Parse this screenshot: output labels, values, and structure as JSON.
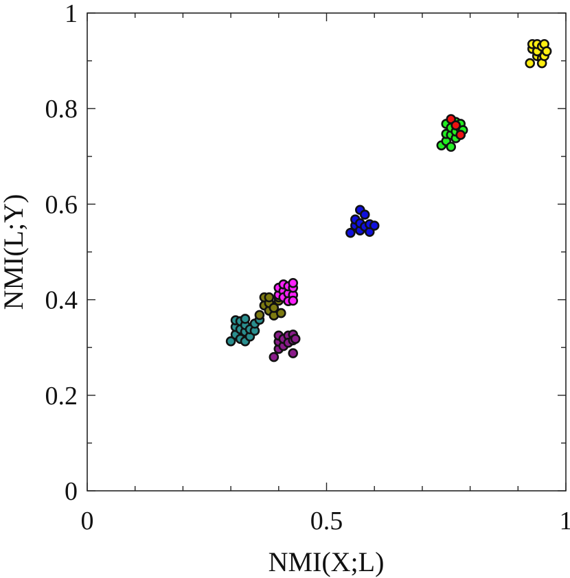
{
  "chart_data": {
    "type": "scatter",
    "xlabel": "NMI(X;L)",
    "ylabel": "NMI(L;Y)",
    "xlim": [
      0,
      1
    ],
    "ylim": [
      0,
      1
    ],
    "x_ticks": [
      {
        "value": 0,
        "label": "0"
      },
      {
        "value": 0.5,
        "label": "0.5"
      },
      {
        "value": 1,
        "label": "1"
      }
    ],
    "x_minor_ticks": [
      0.1,
      0.2,
      0.3,
      0.4,
      0.6,
      0.7,
      0.8,
      0.9
    ],
    "y_ticks": [
      {
        "value": 0,
        "label": "0"
      },
      {
        "value": 0.2,
        "label": "0.2"
      },
      {
        "value": 0.4,
        "label": "0.4"
      },
      {
        "value": 0.6,
        "label": "0.6"
      },
      {
        "value": 0.8,
        "label": "0.8"
      },
      {
        "value": 1,
        "label": "1"
      }
    ],
    "y_minor_ticks": [
      0.1,
      0.3,
      0.5,
      0.7,
      0.9
    ],
    "grid": false,
    "series": [
      {
        "color": "#2a8f8f",
        "points": [
          [
            0.3,
            0.313
          ],
          [
            0.31,
            0.327
          ],
          [
            0.31,
            0.343
          ],
          [
            0.31,
            0.357
          ],
          [
            0.32,
            0.318
          ],
          [
            0.32,
            0.338
          ],
          [
            0.32,
            0.355
          ],
          [
            0.33,
            0.313
          ],
          [
            0.33,
            0.333
          ],
          [
            0.33,
            0.347
          ],
          [
            0.33,
            0.36
          ],
          [
            0.34,
            0.323
          ],
          [
            0.34,
            0.338
          ],
          [
            0.35,
            0.335
          ],
          [
            0.35,
            0.35
          ],
          [
            0.36,
            0.358
          ]
        ]
      },
      {
        "color": "#7d7a10",
        "points": [
          [
            0.36,
            0.368
          ],
          [
            0.37,
            0.388
          ],
          [
            0.37,
            0.405
          ],
          [
            0.38,
            0.377
          ],
          [
            0.38,
            0.393
          ],
          [
            0.38,
            0.405
          ],
          [
            0.39,
            0.367
          ],
          [
            0.39,
            0.383
          ],
          [
            0.4,
            0.398
          ],
          [
            0.4,
            0.405
          ],
          [
            0.405,
            0.372
          ]
        ]
      },
      {
        "color": "#ff22ff",
        "points": [
          [
            0.4,
            0.41
          ],
          [
            0.4,
            0.425
          ],
          [
            0.41,
            0.418
          ],
          [
            0.41,
            0.432
          ],
          [
            0.41,
            0.405
          ],
          [
            0.42,
            0.413
          ],
          [
            0.42,
            0.428
          ],
          [
            0.42,
            0.397
          ],
          [
            0.43,
            0.41
          ],
          [
            0.43,
            0.425
          ],
          [
            0.43,
            0.435
          ],
          [
            0.43,
            0.398
          ]
        ]
      },
      {
        "color": "#8a1c8a",
        "points": [
          [
            0.39,
            0.28
          ],
          [
            0.4,
            0.297
          ],
          [
            0.4,
            0.312
          ],
          [
            0.4,
            0.325
          ],
          [
            0.41,
            0.303
          ],
          [
            0.41,
            0.318
          ],
          [
            0.42,
            0.325
          ],
          [
            0.42,
            0.31
          ],
          [
            0.43,
            0.327
          ],
          [
            0.43,
            0.315
          ],
          [
            0.43,
            0.288
          ],
          [
            0.435,
            0.318
          ]
        ]
      },
      {
        "color": "#1010dd",
        "points": [
          [
            0.55,
            0.54
          ],
          [
            0.56,
            0.555
          ],
          [
            0.56,
            0.568
          ],
          [
            0.57,
            0.545
          ],
          [
            0.57,
            0.56
          ],
          [
            0.57,
            0.588
          ],
          [
            0.58,
            0.578
          ],
          [
            0.58,
            0.553
          ],
          [
            0.59,
            0.542
          ],
          [
            0.59,
            0.558
          ],
          [
            0.6,
            0.555
          ]
        ]
      },
      {
        "color": "#22ee22",
        "points": [
          [
            0.74,
            0.723
          ],
          [
            0.75,
            0.732
          ],
          [
            0.75,
            0.747
          ],
          [
            0.75,
            0.768
          ],
          [
            0.76,
            0.745
          ],
          [
            0.76,
            0.76
          ],
          [
            0.77,
            0.738
          ],
          [
            0.77,
            0.752
          ],
          [
            0.77,
            0.772
          ],
          [
            0.78,
            0.758
          ],
          [
            0.78,
            0.768
          ],
          [
            0.78,
            0.745
          ],
          [
            0.785,
            0.755
          ],
          [
            0.76,
            0.72
          ]
        ]
      },
      {
        "color": "#ee1111",
        "points": [
          [
            0.76,
            0.778
          ],
          [
            0.78,
            0.745
          ],
          [
            0.77,
            0.765
          ]
        ]
      },
      {
        "color": "#ffee11",
        "points": [
          [
            0.925,
            0.895
          ],
          [
            0.93,
            0.925
          ],
          [
            0.93,
            0.935
          ],
          [
            0.94,
            0.91
          ],
          [
            0.94,
            0.92
          ],
          [
            0.94,
            0.935
          ],
          [
            0.95,
            0.905
          ],
          [
            0.95,
            0.93
          ],
          [
            0.95,
            0.895
          ],
          [
            0.955,
            0.935
          ],
          [
            0.955,
            0.91
          ],
          [
            0.96,
            0.92
          ]
        ]
      }
    ]
  }
}
